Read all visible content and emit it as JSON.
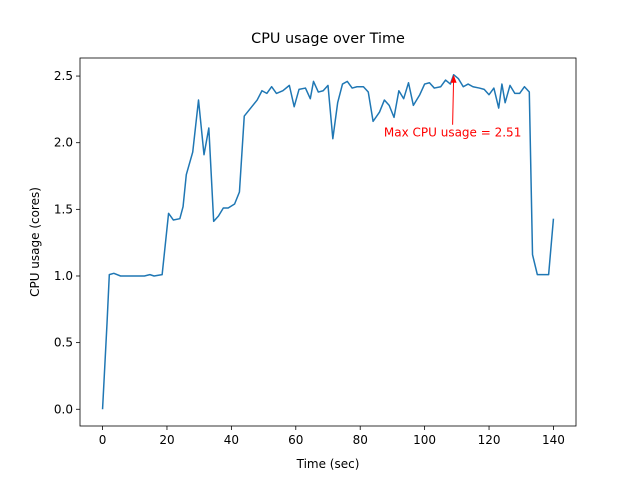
{
  "chart_data": {
    "type": "line",
    "title": "CPU usage over Time",
    "x_label": "Time (sec)",
    "y_label": "CPU usage (cores)",
    "x": [
      0,
      1.4,
      2.1,
      3.5,
      5.6,
      7,
      9,
      11,
      13,
      14.7,
      16,
      18.5,
      20.5,
      22,
      24,
      25,
      26,
      28,
      29.8,
      31.5,
      33,
      34.5,
      36,
      37.5,
      39,
      41,
      42.5,
      44,
      46,
      48,
      49.5,
      51,
      52.5,
      54,
      56,
      58,
      59.5,
      61,
      63,
      64.5,
      65.5,
      67,
      68.5,
      70,
      71.5,
      73,
      74.5,
      76,
      77.5,
      79,
      81,
      82.5,
      84,
      86,
      87.5,
      89,
      90.5,
      92,
      93.5,
      95,
      96.5,
      98.5,
      100,
      101.5,
      103,
      105,
      106.5,
      108,
      109,
      110.5,
      112,
      113.5,
      115,
      117,
      118.5,
      120,
      121.5,
      123,
      124,
      125,
      126.5,
      128,
      129.5,
      131,
      132.5,
      133.5,
      135,
      137,
      138.5,
      140
    ],
    "series": [
      {
        "name": "CPU usage",
        "color": "#1f77b4",
        "values": [
          0,
          0.65,
          1.01,
          1.02,
          1.0,
          1.0,
          1.0,
          1.0,
          1.0,
          1.01,
          1.0,
          1.01,
          1.47,
          1.42,
          1.43,
          1.52,
          1.76,
          1.93,
          2.32,
          1.91,
          2.11,
          1.41,
          1.45,
          1.51,
          1.51,
          1.54,
          1.63,
          2.2,
          2.26,
          2.32,
          2.39,
          2.37,
          2.42,
          2.37,
          2.39,
          2.43,
          2.27,
          2.4,
          2.41,
          2.33,
          2.46,
          2.38,
          2.39,
          2.43,
          2.03,
          2.3,
          2.44,
          2.46,
          2.41,
          2.42,
          2.42,
          2.38,
          2.16,
          2.23,
          2.32,
          2.28,
          2.19,
          2.39,
          2.33,
          2.45,
          2.28,
          2.36,
          2.44,
          2.45,
          2.41,
          2.42,
          2.47,
          2.44,
          2.51,
          2.48,
          2.42,
          2.44,
          2.42,
          2.41,
          2.4,
          2.36,
          2.41,
          2.26,
          2.44,
          2.3,
          2.43,
          2.37,
          2.37,
          2.42,
          2.38,
          1.16,
          1.01,
          1.01,
          1.01,
          1.43
        ]
      }
    ],
    "xlim": [
      -7.0,
      147.0
    ],
    "ylim": [
      -0.1255,
      2.6355
    ],
    "xticks": [
      0,
      20,
      40,
      60,
      80,
      100,
      120,
      140
    ],
    "yticks": [
      {
        "value": 0,
        "label": "0.0"
      },
      0.5,
      {
        "value": 1,
        "label": "1.0"
      },
      1.5,
      {
        "value": 2,
        "label": "2.0"
      },
      2.5
    ],
    "annotation": {
      "text": "Max CPU usage = 2.51",
      "color": "red"
    }
  }
}
